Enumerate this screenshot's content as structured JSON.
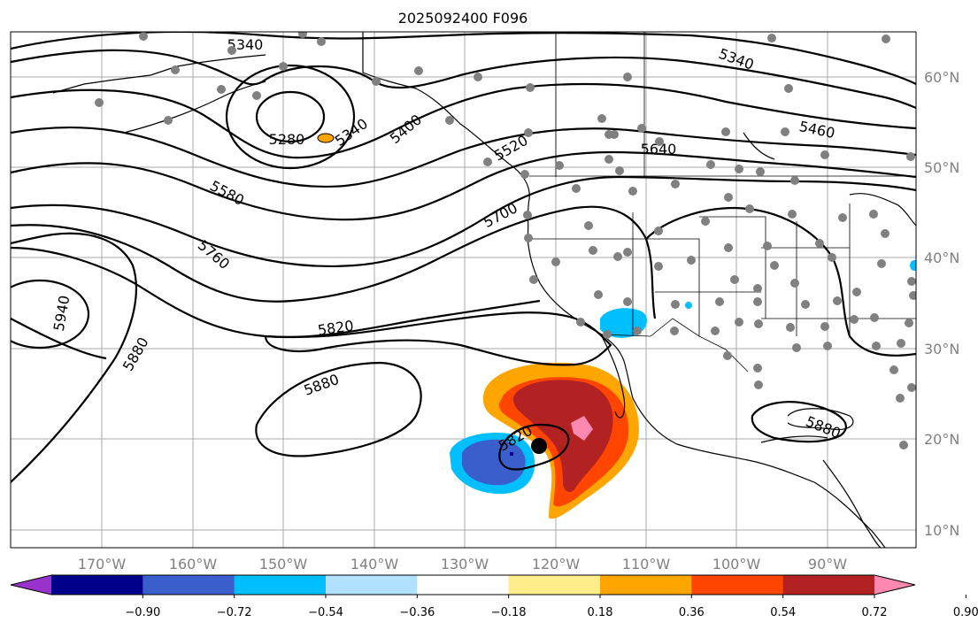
{
  "title": "2025092400 F096",
  "lon_labels": [
    "170°W",
    "160°W",
    "150°W",
    "140°W",
    "130°W",
    "120°W",
    "110°W",
    "100°W",
    "90°W"
  ],
  "lat_labels": [
    "60°N",
    "50°N",
    "40°N",
    "30°N",
    "20°N",
    "10°N"
  ],
  "contour_labels": [
    "5340",
    "5340",
    "5280",
    "5340",
    "5400",
    "5520",
    "5640",
    "5460",
    "5580",
    "5700",
    "5760",
    "5940",
    "5880",
    "5820",
    "5880",
    "5820",
    "5880"
  ],
  "colorbar": {
    "ticks": [
      "−0.90",
      "−0.72",
      "−0.54",
      "−0.36",
      "−0.18",
      "0.18",
      "0.36",
      "0.54",
      "0.72",
      "0.90"
    ],
    "colors": [
      "#9932CC",
      "#00008B",
      "#3A5FCD",
      "#00BFFF",
      "#B0E2FF",
      "#FFFFFF",
      "#FFEC8B",
      "#FFA500",
      "#FF4500",
      "#B22222",
      "#FF88B0"
    ]
  },
  "storm_marker": "hurricane-center"
}
